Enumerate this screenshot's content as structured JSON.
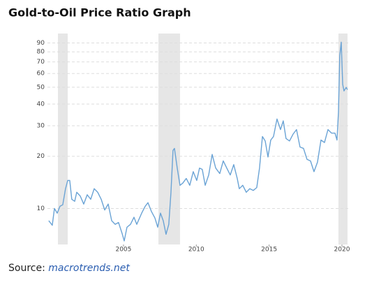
{
  "chart_data": {
    "type": "line",
    "title": "Gold-to-Oil Price Ratio Graph",
    "source_label": "Source:",
    "source": "macrotrends.net",
    "log_scale": true,
    "grid": true,
    "color": "#6aa3d5",
    "shade_color": "#e6e6e6",
    "shaded_regions": [
      [
        2000.5,
        2001.17
      ],
      [
        2007.4,
        2008.88
      ],
      [
        2019.76,
        2020.38
      ]
    ],
    "xlim": [
      1999.78,
      2020.48
    ],
    "xticks": [
      2005,
      2010,
      2015,
      2020
    ],
    "ylim": [
      6.2,
      102
    ],
    "yticks": [
      10,
      20,
      30,
      40,
      50,
      60,
      70,
      80,
      90
    ],
    "x": [
      1999.87,
      2000.11,
      2000.26,
      2000.45,
      2000.64,
      2000.83,
      2001.02,
      2001.17,
      2001.31,
      2001.45,
      2001.65,
      2001.79,
      2002.03,
      2002.27,
      2002.51,
      2002.75,
      2002.99,
      2003.23,
      2003.47,
      2003.71,
      2003.95,
      2004.19,
      2004.43,
      2004.66,
      2004.9,
      2005.05,
      2005.24,
      2005.48,
      2005.72,
      2005.91,
      2006.25,
      2006.49,
      2006.68,
      2006.92,
      2007.16,
      2007.35,
      2007.54,
      2007.73,
      2007.92,
      2008.11,
      2008.26,
      2008.4,
      2008.5,
      2008.69,
      2008.88,
      2009.07,
      2009.31,
      2009.55,
      2009.79,
      2010.03,
      2010.22,
      2010.41,
      2010.61,
      2010.85,
      2011.09,
      2011.33,
      2011.61,
      2011.85,
      2012.09,
      2012.33,
      2012.57,
      2012.81,
      2012.95,
      2013.19,
      2013.43,
      2013.67,
      2013.91,
      2014.15,
      2014.34,
      2014.54,
      2014.73,
      2014.92,
      2015.11,
      2015.3,
      2015.54,
      2015.78,
      2015.97,
      2016.16,
      2016.4,
      2016.64,
      2016.88,
      2017.12,
      2017.36,
      2017.6,
      2017.84,
      2018.08,
      2018.32,
      2018.56,
      2018.8,
      2019.04,
      2019.28,
      2019.52,
      2019.66,
      2019.76,
      2019.85,
      2019.95,
      2020.05,
      2020.14,
      2020.29,
      2020.38
    ],
    "values": [
      8.5,
      8.0,
      10.0,
      9.4,
      10.3,
      10.5,
      13.0,
      14.5,
      14.5,
      11.3,
      11.0,
      12.4,
      11.8,
      10.6,
      12.0,
      11.3,
      13.0,
      12.4,
      11.3,
      9.8,
      10.6,
      8.5,
      8.1,
      8.3,
      7.2,
      6.5,
      7.8,
      8.1,
      8.9,
      8.1,
      9.4,
      10.3,
      10.8,
      9.6,
      8.8,
      7.8,
      9.4,
      8.5,
      7.1,
      8.1,
      12.4,
      21.6,
      22.2,
      17.1,
      13.6,
      14.0,
      14.9,
      13.6,
      16.3,
      14.5,
      17.1,
      16.8,
      13.6,
      15.6,
      20.5,
      17.1,
      15.9,
      18.8,
      17.1,
      15.6,
      17.9,
      14.9,
      13.0,
      13.6,
      12.4,
      13.0,
      12.7,
      13.2,
      17.1,
      26.0,
      24.5,
      19.8,
      24.8,
      26.0,
      32.8,
      28.5,
      32.0,
      25.3,
      24.5,
      26.8,
      28.5,
      22.6,
      22.2,
      19.2,
      18.8,
      16.3,
      18.5,
      24.8,
      24.0,
      28.5,
      27.2,
      27.2,
      24.8,
      36.0,
      76.0,
      91.0,
      52.0,
      47.6,
      49.9,
      48.4
    ]
  }
}
